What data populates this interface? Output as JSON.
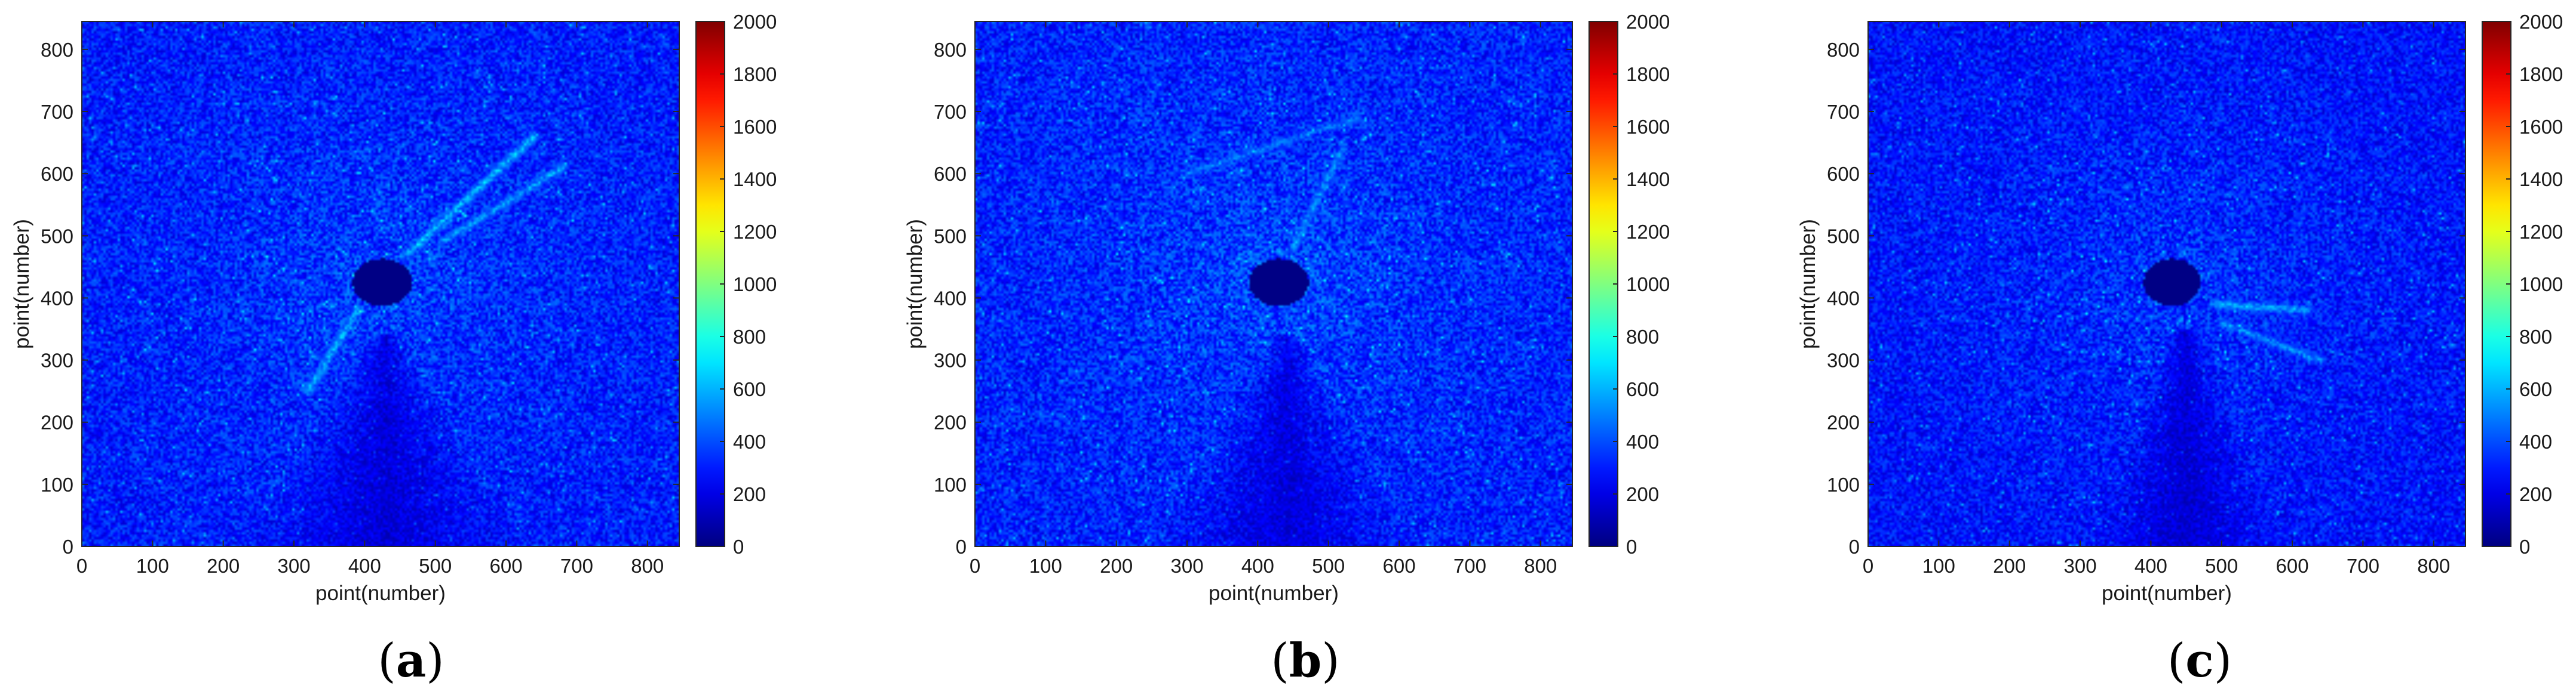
{
  "chart_data": [
    {
      "type": "heatmap",
      "panel_label": "a",
      "xlabel": "point(number)",
      "ylabel": "point(number)",
      "xlim": [
        0,
        845
      ],
      "ylim": [
        0,
        845
      ],
      "xticks": [
        0,
        100,
        200,
        300,
        400,
        500,
        600,
        700,
        800
      ],
      "yticks": [
        0,
        100,
        200,
        300,
        400,
        500,
        600,
        700,
        800
      ],
      "colorbar": {
        "min": 0,
        "max": 2000,
        "ticks": [
          0,
          200,
          400,
          600,
          800,
          1000,
          1200,
          1400,
          1600,
          1800,
          2000
        ],
        "colormap": "jet"
      },
      "background_level": 280,
      "hole": {
        "x": 425,
        "y": 425,
        "rx": 42,
        "ry": 38
      },
      "shadow": {
        "apex_x": 430,
        "apex_y": 340,
        "spread": 0.55
      },
      "streaks": [
        {
          "x1": 460,
          "y1": 470,
          "x2": 640,
          "y2": 660,
          "level": 650
        },
        {
          "x1": 510,
          "y1": 490,
          "x2": 680,
          "y2": 610,
          "level": 600
        },
        {
          "x1": 390,
          "y1": 380,
          "x2": 320,
          "y2": 250,
          "level": 620
        }
      ]
    },
    {
      "type": "heatmap",
      "panel_label": "b",
      "xlabel": "point(number)",
      "ylabel": "point(number)",
      "xlim": [
        0,
        845
      ],
      "ylim": [
        0,
        845
      ],
      "xticks": [
        0,
        100,
        200,
        300,
        400,
        500,
        600,
        700,
        800
      ],
      "yticks": [
        0,
        100,
        200,
        300,
        400,
        500,
        600,
        700,
        800
      ],
      "colorbar": {
        "min": 0,
        "max": 2000,
        "ticks": [
          0,
          200,
          400,
          600,
          800,
          1000,
          1200,
          1400,
          1600,
          1800,
          2000
        ],
        "colormap": "jet"
      },
      "background_level": 290,
      "hole": {
        "x": 430,
        "y": 425,
        "rx": 42,
        "ry": 38
      },
      "shadow": {
        "apex_x": 440,
        "apex_y": 340,
        "spread": 0.5
      },
      "streaks": [
        {
          "x1": 450,
          "y1": 480,
          "x2": 520,
          "y2": 640,
          "level": 560
        },
        {
          "x1": 300,
          "y1": 600,
          "x2": 540,
          "y2": 690,
          "level": 520
        }
      ]
    },
    {
      "type": "heatmap",
      "panel_label": "c",
      "xlabel": "point(number)",
      "ylabel": "point(number)",
      "xlim": [
        0,
        845
      ],
      "ylim": [
        0,
        845
      ],
      "xticks": [
        0,
        100,
        200,
        300,
        400,
        500,
        600,
        700,
        800
      ],
      "yticks": [
        0,
        100,
        200,
        300,
        400,
        500,
        600,
        700,
        800
      ],
      "colorbar": {
        "min": 0,
        "max": 2000,
        "ticks": [
          0,
          200,
          400,
          600,
          800,
          1000,
          1200,
          1400,
          1600,
          1800,
          2000
        ],
        "colormap": "jet"
      },
      "background_level": 260,
      "hole": {
        "x": 430,
        "y": 425,
        "rx": 40,
        "ry": 38
      },
      "shadow": {
        "apex_x": 450,
        "apex_y": 350,
        "spread": 0.35
      },
      "streaks": [
        {
          "x1": 490,
          "y1": 390,
          "x2": 620,
          "y2": 380,
          "level": 620
        },
        {
          "x1": 500,
          "y1": 360,
          "x2": 640,
          "y2": 300,
          "level": 560
        }
      ]
    }
  ]
}
